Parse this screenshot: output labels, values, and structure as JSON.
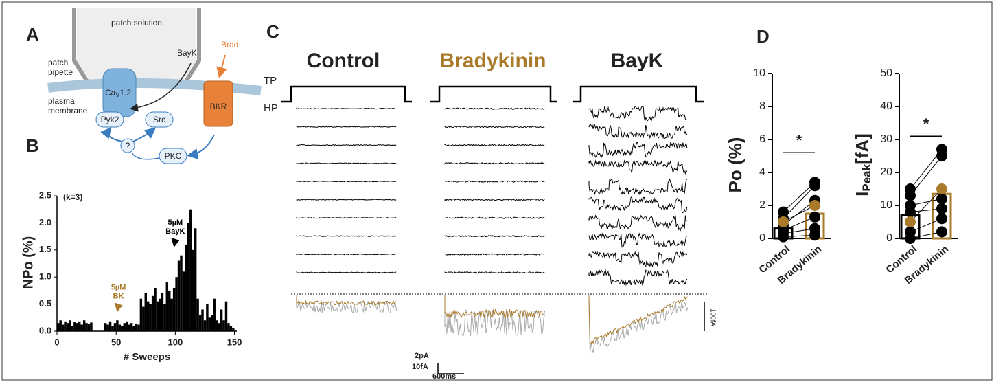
{
  "panels": {
    "a": "A",
    "b": "B",
    "c": "C",
    "d": "D"
  },
  "diagram": {
    "patch_solution": "patch solution",
    "patch_pipette": [
      "patch",
      "pipette"
    ],
    "plasma_membrane": [
      "plasma",
      "membrane"
    ],
    "bayk": "BayK",
    "brad": "Brad",
    "channel": [
      "Ca",
      "V",
      "1.2"
    ],
    "receptor": "BKR",
    "nodes": [
      "Pyk2",
      "Src",
      "?",
      "PKC"
    ]
  },
  "traces": {
    "titles": [
      "Control",
      "Bradykinin",
      "BayK"
    ],
    "tp": "TP",
    "hp": "HP",
    "scale": {
      "current": "2pA",
      "average": "10fA",
      "time": "600ms",
      "side": "100fA"
    }
  },
  "chart_data": [
    {
      "type": "bar",
      "ylabel": "NPo (%)",
      "xlabel": "# Sweeps",
      "annotation": "(k=3)",
      "color": "#000000",
      "markers": [
        {
          "text": [
            "5µM",
            "BK"
          ],
          "color": "#a87a2a",
          "x": 52,
          "y": 0.35
        },
        {
          "text": [
            "5µM",
            "BayK"
          ],
          "color": "#000000",
          "x": 100,
          "y": 1.55
        }
      ],
      "x": [
        2,
        4,
        6,
        8,
        10,
        12,
        14,
        16,
        18,
        20,
        22,
        24,
        26,
        28,
        30,
        32,
        34,
        36,
        38,
        40,
        42,
        44,
        46,
        48,
        50,
        52,
        54,
        56,
        58,
        60,
        62,
        64,
        66,
        68,
        70,
        72,
        74,
        76,
        78,
        80,
        82,
        84,
        86,
        88,
        90,
        92,
        94,
        96,
        98,
        100,
        102,
        104,
        106,
        108,
        110,
        112,
        114,
        116,
        118,
        120,
        122,
        124,
        126,
        128,
        130,
        132,
        134,
        136,
        138,
        140,
        142,
        144,
        146,
        148,
        150
      ],
      "values": [
        0.15,
        0.2,
        0.12,
        0.18,
        0.15,
        0.2,
        0.1,
        0.17,
        0.15,
        0.18,
        0.12,
        0.2,
        0.15,
        0.14,
        0.16,
        0,
        0,
        0,
        0,
        0,
        0.15,
        0.12,
        0.18,
        0.1,
        0.15,
        0.2,
        0.12,
        0.1,
        0.15,
        0.18,
        0.12,
        0.15,
        0.1,
        0.14,
        0.12,
        0.6,
        0.45,
        0.7,
        0.55,
        0.5,
        0.65,
        0.8,
        0.55,
        0.6,
        0.7,
        0.5,
        0.9,
        0.75,
        0.6,
        0.8,
        1.0,
        1.3,
        1.4,
        1.1,
        1.6,
        2.0,
        2.25,
        1.5,
        1.9,
        0.6,
        0.3,
        0.4,
        0.2,
        0.5,
        0.25,
        0.3,
        0.6,
        0.2,
        0.15,
        0.4,
        0.2,
        0.55,
        0.15,
        0.1,
        0.05
      ],
      "xlim": [
        0,
        152
      ],
      "xticks": [
        0,
        50,
        100,
        150
      ],
      "ylim": [
        0,
        2.5
      ],
      "yticks": [
        {
          "value": 0,
          "label": "0.0"
        },
        0.5,
        {
          "value": 1,
          "label": "1.0"
        },
        1.5,
        {
          "value": 2,
          "label": "2.0"
        },
        2.5
      ]
    },
    {
      "type": "paired",
      "ylabel": [
        "Po (%)"
      ],
      "categories": [
        "Control",
        "Bradykinin"
      ],
      "annotation": "*",
      "bars": [
        0.6,
        1.5
      ],
      "bar_colors": [
        "#000000",
        "#a87a2a"
      ],
      "pairs": [
        [
          0.1,
          0.2
        ],
        [
          0.3,
          0.6
        ],
        [
          0.5,
          1.3
        ],
        [
          0.8,
          2.3
        ],
        [
          1.2,
          3.2
        ],
        [
          1.6,
          3.4
        ],
        [
          1.0,
          2.0
        ]
      ],
      "pair_colors": [
        "#000000",
        "#000000",
        "#000000",
        "#000000",
        "#000000",
        "#000000",
        "#a87a2a"
      ],
      "ylim": [
        0,
        10
      ],
      "yticks": [
        0,
        2,
        4,
        6,
        8,
        10
      ]
    },
    {
      "type": "paired",
      "ylabel": [
        "I",
        "Peak",
        "[fA]"
      ],
      "categories": [
        "Control",
        "Bradykinin"
      ],
      "annotation": "*",
      "bars": [
        7,
        13.5
      ],
      "bar_colors": [
        "#000000",
        "#a87a2a"
      ],
      "pairs": [
        [
          0,
          2
        ],
        [
          2,
          6
        ],
        [
          8,
          9
        ],
        [
          10,
          12
        ],
        [
          13,
          25
        ],
        [
          15,
          27
        ],
        [
          5,
          15
        ]
      ],
      "pair_colors": [
        "#000000",
        "#000000",
        "#000000",
        "#000000",
        "#000000",
        "#000000",
        "#a87a2a"
      ],
      "ylim": [
        0,
        50
      ],
      "yticks": [
        0,
        10,
        20,
        30,
        40,
        50
      ]
    }
  ]
}
